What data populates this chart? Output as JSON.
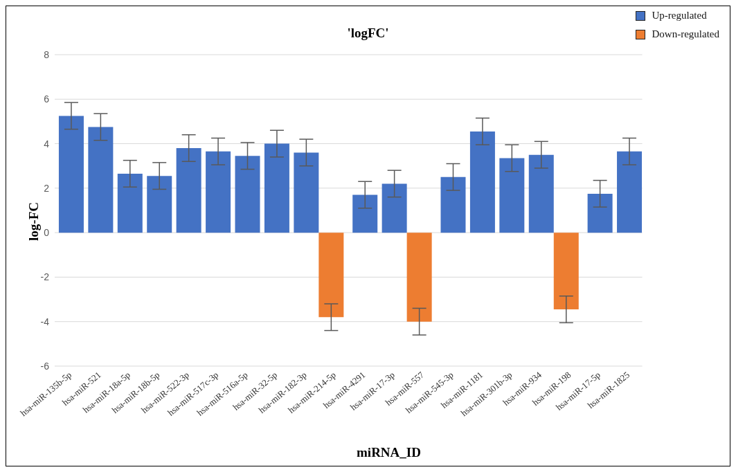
{
  "chart_data": {
    "type": "bar",
    "title": "'logFC'",
    "xlabel": "miRNA_ID",
    "ylabel": "log-FC",
    "categories": [
      "hsa-miR-135b-5p",
      "hsa-miR-521",
      "hsa-miR-18a-5p",
      "hsa-miR-18b-5p",
      "hsa-miR-522-3p",
      "hsa-miR-517c-3p",
      "hsa-miR-516a-5p",
      "hsa-miR-32-5p",
      "hsa-miR-182-3p",
      "hsa-miR-214-5p",
      "hsa-miR-4291",
      "hsa-miR-17-3p",
      "hsa-miR-557",
      "hsa-miR-545-3p",
      "hsa-miR-1181",
      "hsa-miR-301b-3p",
      "hsa-miR-934",
      "hsa-miR-198",
      "hsa-miR-17-5p",
      "hsa-miR-1825"
    ],
    "series": [
      {
        "name": "Up-regulated",
        "color": "#4472c4",
        "values": [
          5.25,
          4.75,
          2.65,
          2.55,
          3.8,
          3.65,
          3.45,
          4.0,
          3.6,
          null,
          1.7,
          2.2,
          null,
          2.5,
          4.55,
          3.35,
          3.5,
          null,
          1.75,
          3.65
        ],
        "errors": [
          0.6,
          0.6,
          0.6,
          0.6,
          0.6,
          0.6,
          0.6,
          0.6,
          0.6,
          null,
          0.6,
          0.6,
          null,
          0.6,
          0.6,
          0.6,
          0.6,
          null,
          0.6,
          0.6
        ]
      },
      {
        "name": "Down-regulated",
        "color": "#ed7d31",
        "values": [
          null,
          null,
          null,
          null,
          null,
          null,
          null,
          null,
          null,
          -3.8,
          null,
          null,
          -4.0,
          null,
          null,
          null,
          null,
          -3.45,
          null,
          null
        ],
        "errors": [
          null,
          null,
          null,
          null,
          null,
          null,
          null,
          null,
          null,
          0.6,
          null,
          null,
          0.6,
          null,
          null,
          null,
          null,
          0.6,
          null,
          null
        ]
      }
    ],
    "ylim": [
      -6,
      8
    ],
    "yticks": [
      -6,
      -4,
      -2,
      0,
      2,
      4,
      6,
      8
    ],
    "grid": "y",
    "legend": "top right"
  }
}
